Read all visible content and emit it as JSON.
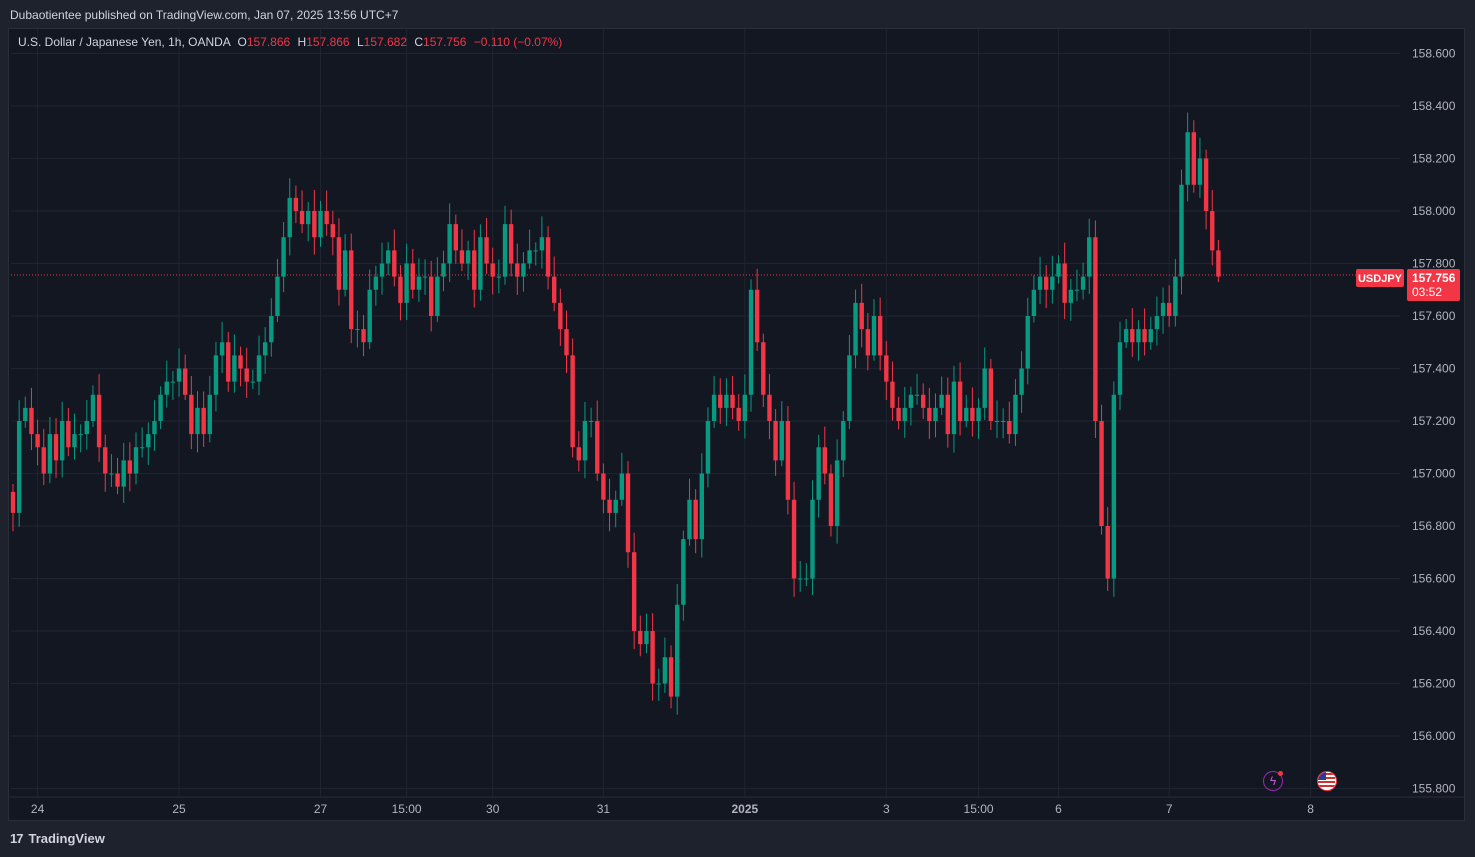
{
  "header": {
    "published": "Dubaotientee published on TradingView.com, Jan 07, 2025 13:56 UTC+7"
  },
  "legend": {
    "symbol": "U.S. Dollar / Japanese Yen, 1h, OANDA",
    "o_label": "O",
    "o_value": "157.866",
    "h_label": "H",
    "h_value": "157.866",
    "l_label": "L",
    "l_value": "157.682",
    "c_label": "C",
    "c_value": "157.756",
    "change": "−0.110 (−0.07%)"
  },
  "price_label": {
    "ticker": "USDJPY",
    "price": "157.756",
    "countdown": "03:52"
  },
  "footer": {
    "brand": "TradingView"
  },
  "icons": {
    "event_1": "lightning-icon",
    "event_2": "us-flag-icon"
  },
  "colors": {
    "up": "#089981",
    "down": "#f23645",
    "background": "#131722",
    "grid": "#1f2430",
    "text": "#d1d4dc"
  },
  "chart_data": {
    "type": "candlestick",
    "symbol": "USDJPY",
    "interval": "1h",
    "ylim": [
      155.75,
      158.7
    ],
    "y_ticks": [
      "158.600",
      "158.400",
      "158.200",
      "158.000",
      "157.800",
      "157.600",
      "157.400",
      "157.200",
      "157.000",
      "156.800",
      "156.600",
      "156.400",
      "156.200",
      "156.000",
      "155.800"
    ],
    "x_ticks": [
      {
        "label": "24",
        "i": 4
      },
      {
        "label": "25",
        "i": 27
      },
      {
        "label": "27",
        "i": 50
      },
      {
        "label": "15:00",
        "i": 64
      },
      {
        "label": "30",
        "i": 78
      },
      {
        "label": "31",
        "i": 96
      },
      {
        "label": "2025",
        "i": 119
      },
      {
        "label": "3",
        "i": 142
      },
      {
        "label": "15:00",
        "i": 157
      },
      {
        "label": "6",
        "i": 170
      },
      {
        "label": "7",
        "i": 188
      },
      {
        "label": "8",
        "i": 211
      }
    ],
    "last_price": 157.756,
    "closes": [
      156.85,
      157.2,
      157.25,
      157.15,
      157.1,
      157.0,
      157.15,
      157.05,
      157.2,
      157.1,
      157.15,
      157.15,
      157.2,
      157.3,
      157.1,
      157.0,
      157.0,
      156.95,
      157.05,
      157.0,
      157.1,
      157.1,
      157.15,
      157.2,
      157.3,
      157.35,
      157.35,
      157.4,
      157.3,
      157.15,
      157.25,
      157.15,
      157.3,
      157.45,
      157.5,
      157.35,
      157.45,
      157.4,
      157.35,
      157.35,
      157.45,
      157.5,
      157.6,
      157.75,
      157.9,
      158.05,
      158.0,
      157.95,
      158.0,
      157.9,
      158.0,
      157.95,
      157.9,
      157.7,
      157.85,
      157.55,
      157.55,
      157.5,
      157.7,
      157.75,
      157.8,
      157.85,
      157.75,
      157.65,
      157.8,
      157.7,
      157.75,
      157.75,
      157.6,
      157.75,
      157.8,
      157.95,
      157.85,
      157.8,
      157.85,
      157.7,
      157.9,
      157.8,
      157.75,
      157.75,
      157.95,
      157.8,
      157.75,
      157.8,
      157.85,
      157.85,
      157.9,
      157.75,
      157.65,
      157.55,
      157.45,
      157.1,
      157.05,
      157.2,
      157.2,
      157.0,
      156.9,
      156.85,
      156.9,
      157.0,
      156.7,
      156.4,
      156.35,
      156.4,
      156.2,
      156.2,
      156.3,
      156.15,
      156.5,
      156.75,
      156.9,
      156.75,
      157.0,
      157.2,
      157.3,
      157.25,
      157.3,
      157.25,
      157.2,
      157.3,
      157.7,
      157.5,
      157.3,
      157.2,
      157.05,
      157.2,
      156.9,
      156.6,
      156.6,
      156.6,
      156.9,
      157.1,
      157.0,
      156.8,
      157.05,
      157.2,
      157.45,
      157.65,
      157.55,
      157.45,
      157.6,
      157.45,
      157.35,
      157.25,
      157.2,
      157.25,
      157.3,
      157.3,
      157.25,
      157.2,
      157.25,
      157.3,
      157.15,
      157.35,
      157.2,
      157.25,
      157.2,
      157.25,
      157.4,
      157.2,
      157.2,
      157.2,
      157.15,
      157.3,
      157.4,
      157.6,
      157.7,
      157.75,
      157.7,
      157.75,
      157.8,
      157.65,
      157.7,
      157.7,
      157.75,
      157.9,
      157.2,
      156.8,
      156.6,
      157.3,
      157.5,
      157.55,
      157.5,
      157.55,
      157.5,
      157.55,
      157.6,
      157.65,
      157.6,
      157.75,
      158.1,
      158.3,
      158.1,
      158.2,
      158.0,
      157.85,
      157.75
    ]
  }
}
